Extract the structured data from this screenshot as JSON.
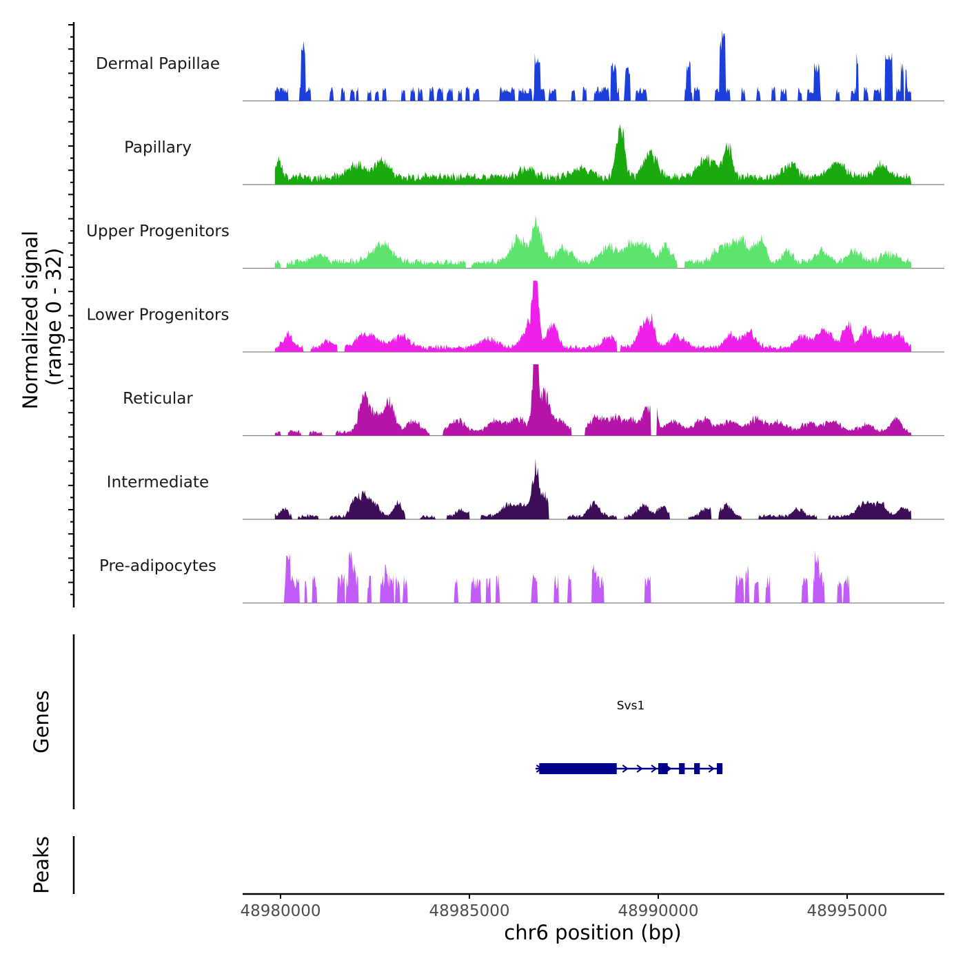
{
  "chart_data": {
    "type": "area",
    "title": "",
    "xlabel": "chr6 position (bp)",
    "ylabel_line1": "Normalized signal",
    "ylabel_line2": "(range 0 - 32)",
    "ylim": [
      0,
      32
    ],
    "xlim": [
      48979500,
      48998000
    ],
    "x_ticks": [
      48980000,
      48985000,
      48990000,
      48995000
    ],
    "x_tick_labels": [
      "48980000",
      "48985000",
      "48990000",
      "48995000"
    ],
    "gene_panel_label": "Genes",
    "peak_panel_label": "Peaks",
    "tracks": [
      {
        "name": "Dermal Papillae",
        "color": "#1c3fdb",
        "style": "spiky",
        "peaks": [
          [
            48980600,
            28,
            60
          ],
          [
            48986800,
            22,
            80
          ],
          [
            48988800,
            18,
            100
          ],
          [
            48989200,
            16,
            80
          ],
          [
            48990800,
            18,
            60
          ],
          [
            48991700,
            32,
            90
          ],
          [
            48994200,
            18,
            80
          ],
          [
            48995300,
            22,
            60
          ],
          [
            48996100,
            22,
            120
          ],
          [
            48996500,
            18,
            80
          ]
        ],
        "blocks": [
          [
            48979850,
            48980200
          ],
          [
            48980500,
            48980800
          ],
          [
            48981300,
            48981400
          ],
          [
            48981600,
            48981700
          ],
          [
            48981850,
            48981950
          ],
          [
            48982000,
            48982050
          ],
          [
            48982300,
            48982400
          ],
          [
            48982500,
            48982600
          ],
          [
            48982700,
            48982800
          ],
          [
            48983200,
            48983300
          ],
          [
            48983450,
            48983550
          ],
          [
            48983650,
            48983750
          ],
          [
            48983950,
            48984050
          ],
          [
            48984150,
            48984300
          ],
          [
            48984400,
            48984550
          ],
          [
            48984700,
            48984800
          ],
          [
            48984900,
            48985000
          ],
          [
            48985100,
            48985250
          ],
          [
            48985800,
            48986200
          ],
          [
            48986300,
            48986650
          ],
          [
            48986700,
            48987000
          ],
          [
            48987100,
            48987300
          ],
          [
            48987700,
            48987800
          ],
          [
            48988000,
            48988100
          ],
          [
            48988300,
            48988700
          ],
          [
            48988750,
            48988950
          ],
          [
            48989100,
            48989250
          ],
          [
            48989400,
            48989700
          ],
          [
            48990700,
            48990900
          ],
          [
            48990950,
            48991100
          ],
          [
            48991500,
            48991900
          ],
          [
            48992200,
            48992300
          ],
          [
            48992600,
            48992700
          ],
          [
            48993000,
            48993100
          ],
          [
            48993250,
            48993400
          ],
          [
            48993700,
            48993800
          ],
          [
            48993950,
            48994300
          ],
          [
            48994700,
            48994800
          ],
          [
            48995100,
            48995300
          ],
          [
            48995450,
            48995550
          ],
          [
            48995700,
            48995900
          ],
          [
            48996000,
            48996200
          ],
          [
            48996300,
            48996500
          ],
          [
            48996550,
            48996700
          ]
        ],
        "block_level": 5
      },
      {
        "name": "Papillary",
        "color": "#1aa90e",
        "style": "smooth",
        "x_range": [
          48979850,
          48996700
        ],
        "base_level": 2.5,
        "peaks": [
          [
            48979950,
            7,
            120
          ],
          [
            48982000,
            5,
            350
          ],
          [
            48982700,
            6,
            300
          ],
          [
            48986500,
            4,
            250
          ],
          [
            48988000,
            4,
            300
          ],
          [
            48989000,
            23,
            150
          ],
          [
            48989800,
            10,
            250
          ],
          [
            48991300,
            8,
            350
          ],
          [
            48991850,
            13,
            150
          ],
          [
            48993500,
            6,
            250
          ],
          [
            48994700,
            7,
            300
          ],
          [
            48995900,
            5,
            250
          ]
        ]
      },
      {
        "name": "Upper Progenitors",
        "color": "#5ce46c",
        "style": "smooth",
        "x_range": [
          48979850,
          48996700
        ],
        "base_level": 2,
        "gaps": [
          [
            48980000,
            48980150
          ],
          [
            48984900,
            48985050
          ],
          [
            48990500,
            48990700
          ]
        ],
        "peaks": [
          [
            48981000,
            3,
            300
          ],
          [
            48982700,
            8,
            400
          ],
          [
            48986300,
            10,
            300
          ],
          [
            48986800,
            16,
            200
          ],
          [
            48987500,
            6,
            300
          ],
          [
            48988700,
            7,
            300
          ],
          [
            48989300,
            9,
            250
          ],
          [
            48989700,
            7,
            200
          ],
          [
            48990200,
            7,
            200
          ],
          [
            48991700,
            7,
            300
          ],
          [
            48992200,
            9,
            300
          ],
          [
            48992700,
            9,
            200
          ],
          [
            48993400,
            5,
            200
          ],
          [
            48994300,
            5,
            250
          ],
          [
            48995200,
            5,
            250
          ],
          [
            48996100,
            4,
            300
          ]
        ]
      },
      {
        "name": "Lower Progenitors",
        "color": "#f020ea",
        "style": "smooth",
        "x_range": [
          48979850,
          48996700
        ],
        "base_level": 1.5,
        "gaps": [
          [
            48980600,
            48980800
          ],
          [
            48981500,
            48981700
          ],
          [
            48988900,
            48989000
          ]
        ],
        "peaks": [
          [
            48980200,
            6,
            180
          ],
          [
            48981300,
            3,
            200
          ],
          [
            48982300,
            6,
            400
          ],
          [
            48983200,
            5,
            300
          ],
          [
            48985500,
            4,
            300
          ],
          [
            48986600,
            10,
            250
          ],
          [
            48986750,
            32,
            100
          ],
          [
            48987200,
            10,
            200
          ],
          [
            48988700,
            5,
            250
          ],
          [
            48989550,
            9,
            180
          ],
          [
            48989800,
            12,
            150
          ],
          [
            48990500,
            5,
            300
          ],
          [
            48991900,
            6,
            200
          ],
          [
            48992400,
            7,
            250
          ],
          [
            48993800,
            5,
            250
          ],
          [
            48994400,
            8,
            300
          ],
          [
            48995000,
            12,
            150
          ],
          [
            48995500,
            9,
            200
          ],
          [
            48996000,
            6,
            250
          ],
          [
            48996400,
            5,
            200
          ]
        ]
      },
      {
        "name": "Reticular",
        "color": "#b614a8",
        "style": "smooth",
        "x_range": [
          48979850,
          48996700
        ],
        "base_level": 1.2,
        "gaps": [
          [
            48980000,
            48980200
          ],
          [
            48980550,
            48980750
          ],
          [
            48981100,
            48981450
          ],
          [
            48983950,
            48984300
          ],
          [
            48987700,
            48988050
          ],
          [
            48989800,
            48989950
          ]
        ],
        "peaks": [
          [
            48982200,
            14,
            180
          ],
          [
            48982500,
            8,
            250
          ],
          [
            48982900,
            13,
            180
          ],
          [
            48983500,
            5,
            250
          ],
          [
            48984700,
            5,
            300
          ],
          [
            48985700,
            5,
            300
          ],
          [
            48986300,
            6,
            300
          ],
          [
            48986750,
            39,
            100
          ],
          [
            48987000,
            16,
            200
          ],
          [
            48987400,
            5,
            250
          ],
          [
            48988400,
            7,
            300
          ],
          [
            48988900,
            6,
            250
          ],
          [
            48989300,
            5,
            200
          ],
          [
            48989700,
            10,
            200
          ],
          [
            48989900,
            12,
            100
          ],
          [
            48990400,
            5,
            300
          ],
          [
            48991200,
            6,
            300
          ],
          [
            48991900,
            5,
            300
          ],
          [
            48992600,
            6,
            300
          ],
          [
            48993200,
            4,
            300
          ],
          [
            48994000,
            4,
            300
          ],
          [
            48994600,
            5,
            300
          ],
          [
            48995500,
            3,
            300
          ],
          [
            48996300,
            6,
            200
          ]
        ]
      },
      {
        "name": "Intermediate",
        "color": "#3e0d58",
        "style": "smooth",
        "x_range": [
          48979850,
          48996700
        ],
        "base_level": 1,
        "gaps": [
          [
            48980300,
            48980450
          ],
          [
            48981000,
            48981300
          ],
          [
            48983300,
            48983700
          ],
          [
            48984100,
            48984400
          ],
          [
            48985000,
            48985300
          ],
          [
            48987100,
            48987600
          ],
          [
            48988900,
            48989100
          ],
          [
            48990300,
            48990800
          ],
          [
            48991400,
            48991600
          ],
          [
            48992200,
            48992650
          ],
          [
            48994200,
            48994500
          ]
        ],
        "peaks": [
          [
            48980100,
            3,
            150
          ],
          [
            48981950,
            6,
            150
          ],
          [
            48982200,
            9,
            200
          ],
          [
            48982500,
            5,
            200
          ],
          [
            48983100,
            6,
            150
          ],
          [
            48984800,
            3,
            200
          ],
          [
            48986000,
            5,
            250
          ],
          [
            48986400,
            5,
            200
          ],
          [
            48986750,
            20,
            130
          ],
          [
            48987000,
            9,
            150
          ],
          [
            48988300,
            6,
            200
          ],
          [
            48989600,
            5,
            200
          ],
          [
            48990100,
            4,
            200
          ],
          [
            48991300,
            4,
            200
          ],
          [
            48991800,
            5,
            200
          ],
          [
            48993700,
            3,
            200
          ],
          [
            48995500,
            6,
            300
          ],
          [
            48995900,
            5,
            200
          ],
          [
            48996500,
            4,
            200
          ]
        ]
      },
      {
        "name": "Pre-adipocytes",
        "color": "#c25cf8",
        "style": "spiky",
        "block_level": 10,
        "blocks": [
          [
            48980100,
            48980500
          ],
          [
            48980650,
            48980700
          ],
          [
            48980850,
            48980950
          ],
          [
            48981500,
            48981700
          ],
          [
            48981750,
            48982050
          ],
          [
            48982300,
            48982400
          ],
          [
            48982650,
            48983000
          ],
          [
            48983050,
            48983150
          ],
          [
            48983250,
            48983350
          ],
          [
            48984600,
            48984700
          ],
          [
            48985050,
            48985300
          ],
          [
            48985450,
            48985550
          ],
          [
            48985700,
            48985800
          ],
          [
            48986650,
            48986800
          ],
          [
            48987250,
            48987350
          ],
          [
            48987600,
            48987700
          ],
          [
            48988250,
            48988550
          ],
          [
            48989650,
            48989800
          ],
          [
            48992050,
            48992250
          ],
          [
            48992300,
            48992400
          ],
          [
            48992550,
            48992650
          ],
          [
            48992850,
            48992950
          ],
          [
            48993800,
            48993950
          ],
          [
            48994100,
            48994400
          ],
          [
            48994750,
            48994850
          ],
          [
            48994900,
            48995050
          ]
        ],
        "peaks": [
          [
            48980200,
            24,
            60
          ],
          [
            48980300,
            14,
            50
          ],
          [
            48981850,
            24,
            60
          ],
          [
            48981950,
            18,
            60
          ],
          [
            48982800,
            18,
            50
          ],
          [
            48982950,
            10,
            50
          ],
          [
            48985700,
            12,
            50
          ],
          [
            48986750,
            12,
            50
          ],
          [
            48988300,
            18,
            60
          ],
          [
            48988400,
            12,
            50
          ],
          [
            48989750,
            12,
            50
          ],
          [
            48992200,
            12,
            50
          ],
          [
            48992300,
            18,
            50
          ],
          [
            48992400,
            18,
            50
          ],
          [
            48993900,
            12,
            50
          ],
          [
            48994200,
            24,
            60
          ],
          [
            48994300,
            14,
            50
          ]
        ]
      }
    ],
    "gene": {
      "name": "Svs1",
      "start": 48986750,
      "end": 48991700,
      "strand": "+",
      "color": "#00008b",
      "exons": [
        [
          48986850,
          48988900
        ],
        [
          48990000,
          48990250
        ],
        [
          48990550,
          48990700
        ],
        [
          48990950,
          48991100
        ],
        [
          48991550,
          48991700
        ]
      ]
    }
  }
}
